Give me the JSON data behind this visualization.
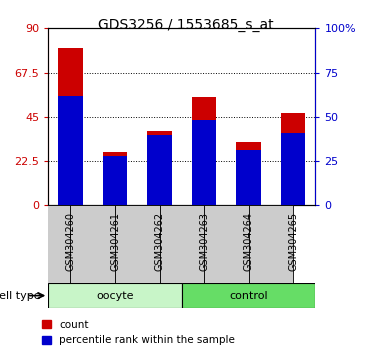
{
  "title": "GDS3256 / 1553685_s_at",
  "samples": [
    "GSM304260",
    "GSM304261",
    "GSM304262",
    "GSM304263",
    "GSM304264",
    "GSM304265"
  ],
  "count_values": [
    80,
    27,
    38,
    55,
    32,
    47
  ],
  "percentile_values": [
    62,
    28,
    40,
    48,
    31,
    41
  ],
  "ylim_left": [
    0,
    90
  ],
  "ylim_right": [
    0,
    100
  ],
  "yticks_left": [
    0,
    22.5,
    45,
    67.5,
    90
  ],
  "yticks_right": [
    0,
    25,
    50,
    75,
    100
  ],
  "ytick_labels_left": [
    "0",
    "22.5",
    "45",
    "67.5",
    "90"
  ],
  "ytick_labels_right": [
    "0",
    "25",
    "50",
    "75",
    "100%"
  ],
  "groups": [
    {
      "label": "oocyte",
      "indices": [
        0,
        1,
        2
      ],
      "color": "#c8f5c8"
    },
    {
      "label": "control",
      "indices": [
        3,
        4,
        5
      ],
      "color": "#66dd66"
    }
  ],
  "bar_color_count": "#cc0000",
  "bar_color_percentile": "#0000cc",
  "bar_width": 0.55,
  "plot_bg_color": "#ffffff",
  "tick_area_color": "#cccccc",
  "cell_type_label": "cell type",
  "legend_count": "count",
  "legend_percentile": "percentile rank within the sample"
}
